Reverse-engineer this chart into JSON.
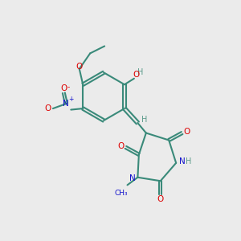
{
  "background_color": "#ebebeb",
  "bond_color": "#3a8a7a",
  "atom_colors": {
    "O": "#dd0000",
    "N": "#1111cc",
    "H": "#5a9a8a",
    "C": "#3a8a7a"
  },
  "figsize": [
    3.0,
    3.0
  ],
  "dpi": 100
}
